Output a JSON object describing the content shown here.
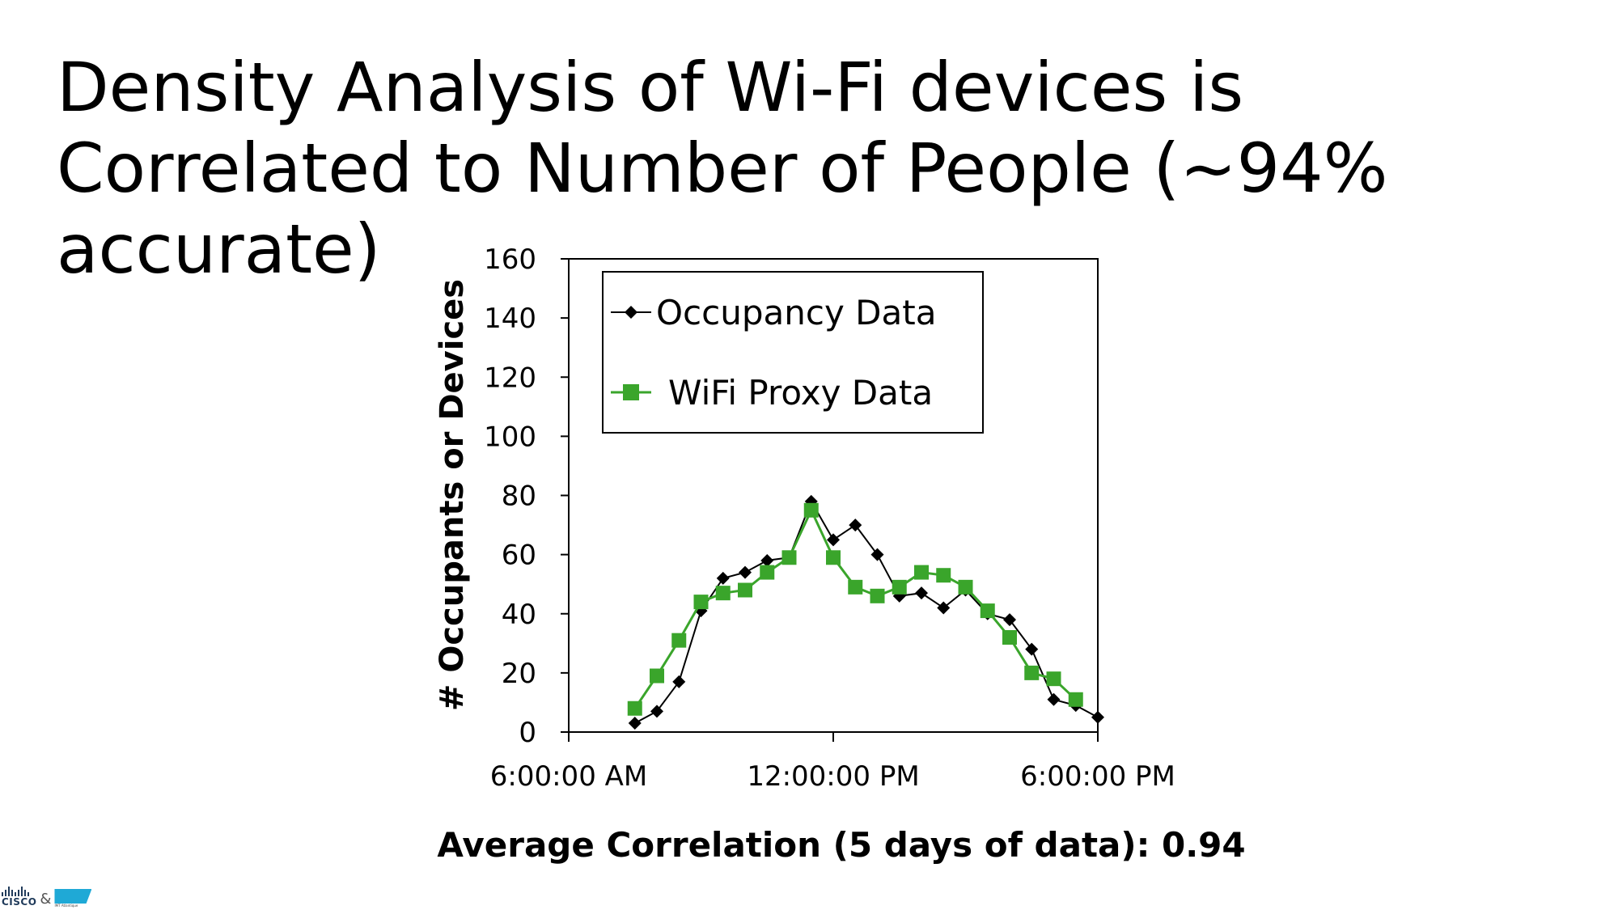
{
  "slide": {
    "title_lines": [
      "Density Analysis of Wi-Fi devices is",
      "Correlated to Number of People (~94%",
      "accurate)"
    ],
    "caption": "Average Correlation (5 days of data): 0.94"
  },
  "footer": {
    "cisco_text": "CISCO",
    "ampersand": "&",
    "imt_text": "IMT Atlantique"
  },
  "chart_data": {
    "type": "line",
    "title": "",
    "xlabel": "",
    "ylabel": "# Occupants or Devices",
    "ylim": [
      0,
      160
    ],
    "yticks": [
      0,
      20,
      40,
      60,
      80,
      100,
      120,
      140,
      160
    ],
    "xlim_hours": [
      6,
      18
    ],
    "xtick_hours": [
      6,
      12,
      18
    ],
    "xtick_labels": [
      "6:00:00 AM",
      "12:00:00 PM",
      "6:00:00 PM"
    ],
    "grid": false,
    "legend_position": "top-left",
    "series": [
      {
        "name": "Occupancy Data",
        "color": "#000000",
        "marker": "diamond",
        "x_hours": [
          7.5,
          8.0,
          8.5,
          9.0,
          9.5,
          10.0,
          10.5,
          11.0,
          11.5,
          12.0,
          12.5,
          13.0,
          13.5,
          14.0,
          14.5,
          15.0,
          15.5,
          16.0,
          16.5,
          17.0,
          17.5,
          18.0
        ],
        "values": [
          3,
          7,
          17,
          41,
          52,
          54,
          58,
          59,
          78,
          65,
          70,
          60,
          46,
          47,
          42,
          48,
          40,
          38,
          28,
          11,
          9,
          5
        ]
      },
      {
        "name": "WiFi Proxy Data",
        "color": "#3aa52b",
        "marker": "square",
        "x_hours": [
          7.5,
          8.0,
          8.5,
          9.0,
          9.5,
          10.0,
          10.5,
          11.0,
          11.5,
          12.0,
          12.5,
          13.0,
          13.5,
          14.0,
          14.5,
          15.0,
          15.5,
          16.0,
          16.5,
          17.0,
          17.5
        ],
        "values": [
          8,
          19,
          31,
          44,
          47,
          48,
          54,
          59,
          75,
          59,
          49,
          46,
          49,
          54,
          53,
          49,
          41,
          32,
          20,
          18,
          11
        ]
      }
    ]
  }
}
